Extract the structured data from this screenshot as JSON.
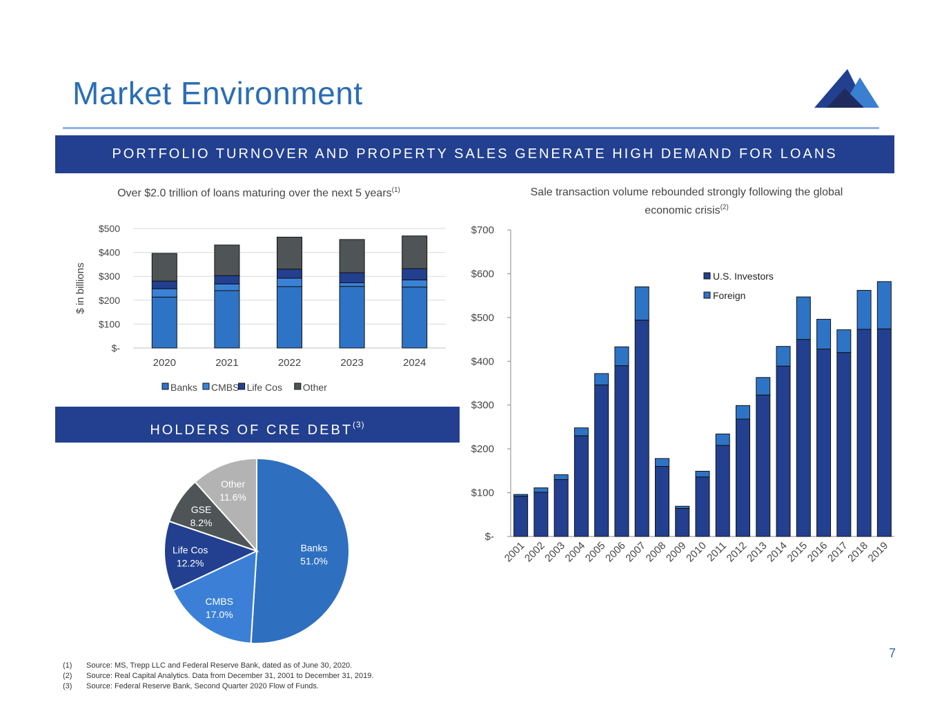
{
  "page": {
    "title": "Market Environment",
    "banner": "PORTFOLIO TURNOVER AND PROPERTY SALES GENERATE HIGH DEMAND FOR LOANS",
    "holders_banner": "HOLDERS OF CRE DEBT",
    "holders_banner_sup": "(3)",
    "left_subtitle": "Over $2.0 trillion of loans maturing over the next 5 years",
    "left_subtitle_sup": "(1)",
    "right_subtitle": "Sale transaction volume rebounded strongly following the global economic crisis",
    "right_subtitle_sup": "(2)",
    "slide_number": "7",
    "footnotes": [
      {
        "num": "(1)",
        "text": "Source: MS, Trepp LLC and Federal Reserve Bank, dated as of June 30, 2020."
      },
      {
        "num": "(2)",
        "text": "Source: Real Capital Analytics. Data from December 31, 2001 to December 31, 2019."
      },
      {
        "num": "(3)",
        "text": "Source: Federal Reserve Bank, Second Quarter 2020 Flow of Funds."
      }
    ],
    "colors": {
      "title": "#2a6db5",
      "banner": "#22408f",
      "rule": "#8fb3e6"
    }
  },
  "chart_data": [
    {
      "type": "bar",
      "stacked": true,
      "title": "Over $2.0 trillion of loans maturing over the next 5 years",
      "ylabel": "$ in billions",
      "categories": [
        "2020",
        "2021",
        "2022",
        "2023",
        "2024"
      ],
      "series": [
        {
          "name": "Banks",
          "color": "#2e74c6",
          "values": [
            213,
            240,
            257,
            258,
            255
          ]
        },
        {
          "name": "CMBS",
          "color": "#3a82d8",
          "values": [
            35,
            28,
            35,
            15,
            30
          ]
        },
        {
          "name": "Life Cos",
          "color": "#22408f",
          "values": [
            32,
            35,
            38,
            42,
            47
          ]
        },
        {
          "name": "Other",
          "color": "#4f5557",
          "values": [
            116,
            128,
            134,
            139,
            137
          ]
        }
      ],
      "yticks": [
        "$-",
        "$100",
        "$200",
        "$300",
        "$400",
        "$500"
      ],
      "ylim": [
        0,
        500
      ],
      "grid": true,
      "legend": "bottom"
    },
    {
      "type": "bar",
      "stacked": true,
      "title": "Sale transaction volume rebounded strongly following the global economic crisis",
      "categories": [
        "2001",
        "2002",
        "2003",
        "2004",
        "2005",
        "2006",
        "2007",
        "2008",
        "2009",
        "2010",
        "2011",
        "2012",
        "2013",
        "2014",
        "2015",
        "2016",
        "2017",
        "2018",
        "2019"
      ],
      "series": [
        {
          "name": "U.S. Investors",
          "color": "#22408f",
          "values": [
            92,
            101,
            130,
            230,
            346,
            390,
            494,
            160,
            64,
            136,
            208,
            268,
            323,
            389,
            450,
            428,
            420,
            473,
            474
          ]
        },
        {
          "name": "Foreign",
          "color": "#2e74c6",
          "values": [
            4,
            10,
            11,
            18,
            26,
            43,
            76,
            18,
            5,
            13,
            26,
            31,
            40,
            45,
            97,
            68,
            52,
            89,
            108
          ]
        }
      ],
      "yticks": [
        "$-",
        "$100",
        "$200",
        "$300",
        "$400",
        "$500",
        "$600",
        "$700"
      ],
      "ylim": [
        0,
        700
      ],
      "grid": false,
      "legend": "top-right"
    },
    {
      "type": "pie",
      "title": "HOLDERS OF CRE DEBT",
      "slices": [
        {
          "label": "Banks",
          "value": 51.0,
          "display": "51.0%",
          "color": "#2e6fc0"
        },
        {
          "label": "CMBS",
          "value": 17.0,
          "display": "17.0%",
          "color": "#3b80d6"
        },
        {
          "label": "Life Cos",
          "value": 12.2,
          "display": "12.2%",
          "color": "#22408f"
        },
        {
          "label": "GSE",
          "value": 8.2,
          "display": "8.2%",
          "color": "#4f5557"
        },
        {
          "label": "Other",
          "value": 11.6,
          "display": "11.6%",
          "color": "#b3b3b3"
        }
      ]
    }
  ]
}
